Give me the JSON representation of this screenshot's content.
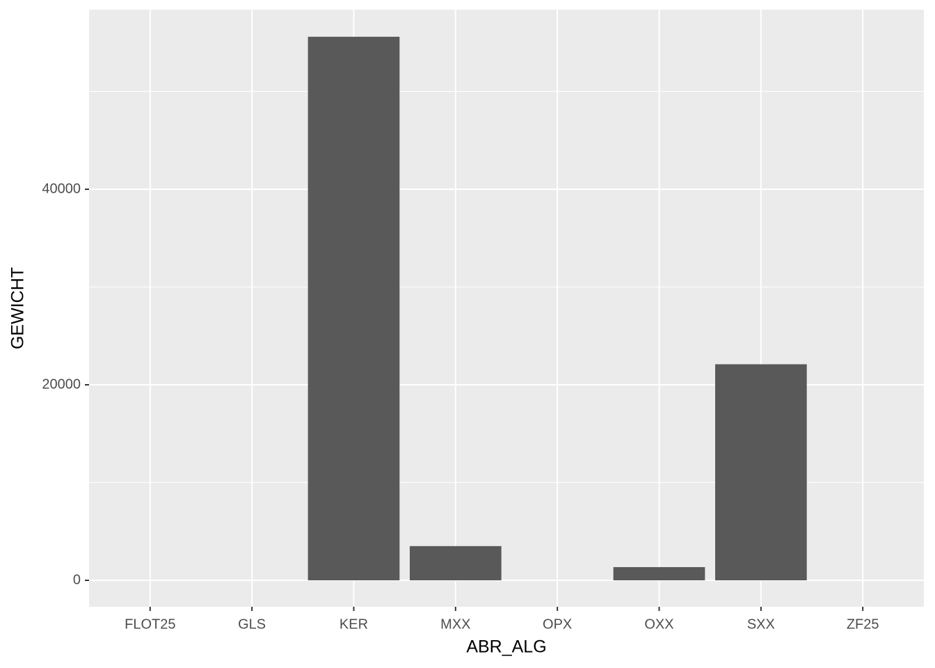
{
  "chart_data": {
    "type": "bar",
    "x_label": "ABR_ALG",
    "y_label": "GEWICHT",
    "categories": [
      "FLOT25",
      "GLS",
      "KER",
      "MXX",
      "OPX",
      "OXX",
      "SXX",
      "ZF25"
    ],
    "values": [
      0,
      0,
      55600,
      3500,
      0,
      1350,
      22100,
      0
    ],
    "color": "#595959",
    "ylim": [
      -2705,
      58363
    ],
    "yticks": [
      0,
      20000,
      40000
    ],
    "y_minor_ticks": [
      10000,
      30000,
      50000
    ],
    "grid": true
  }
}
